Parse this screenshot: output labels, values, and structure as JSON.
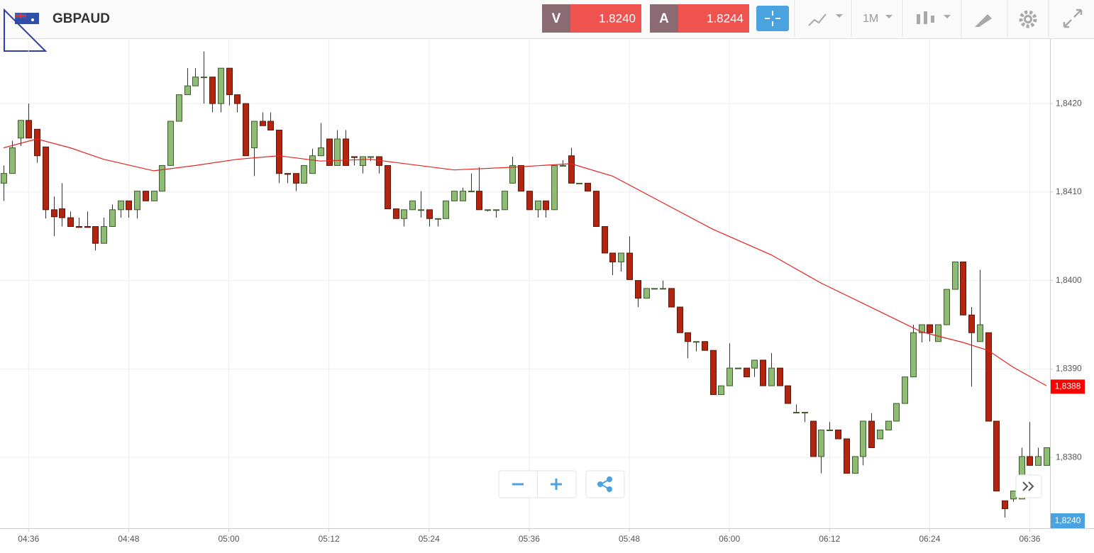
{
  "toolbar": {
    "symbol": "GBPAUD",
    "sell_label": "V",
    "sell_price": "1.8240",
    "buy_label": "A",
    "buy_price": "1.8244",
    "timeframe": "1M"
  },
  "chart_data": {
    "type": "candlestick",
    "x": [
      "04:33",
      "04:34",
      "04:35",
      "04:36",
      "04:37",
      "04:38",
      "04:39",
      "04:40",
      "04:41",
      "04:42",
      "04:43",
      "04:44",
      "04:45",
      "04:46",
      "04:47",
      "04:48",
      "04:49",
      "04:50",
      "04:51",
      "04:52",
      "04:53",
      "04:54",
      "04:55",
      "04:56",
      "04:57",
      "04:58",
      "04:59",
      "05:00",
      "05:01",
      "05:02",
      "05:03",
      "05:04",
      "05:05",
      "05:06",
      "05:07",
      "05:08",
      "05:09",
      "05:10",
      "05:11",
      "05:12",
      "05:13",
      "05:14",
      "05:15",
      "05:16",
      "05:17",
      "05:18",
      "05:19",
      "05:20",
      "05:21",
      "05:22",
      "05:23",
      "05:24",
      "05:25",
      "05:26",
      "05:27",
      "05:28",
      "05:29",
      "05:30",
      "05:31",
      "05:32",
      "05:33",
      "05:34",
      "05:35",
      "05:36",
      "05:37",
      "05:38",
      "05:39",
      "05:40",
      "05:41",
      "05:42",
      "05:43",
      "05:44",
      "05:45",
      "05:46",
      "05:47",
      "05:48",
      "05:49",
      "05:50",
      "05:51",
      "05:52",
      "05:53",
      "05:54",
      "05:55",
      "05:56",
      "05:57",
      "05:58",
      "05:59",
      "06:00",
      "06:01",
      "06:02",
      "06:03",
      "06:04",
      "06:05",
      "06:06",
      "06:07",
      "06:08",
      "06:09",
      "06:10",
      "06:11",
      "06:12",
      "06:13",
      "06:14",
      "06:15",
      "06:16",
      "06:17",
      "06:18",
      "06:19",
      "06:20",
      "06:21",
      "06:22",
      "06:23",
      "06:24",
      "06:25",
      "06:26",
      "06:27",
      "06:28",
      "06:29",
      "06:30",
      "06:31",
      "06:32",
      "06:33",
      "06:34",
      "06:35",
      "06:36",
      "06:37",
      "06:38"
    ],
    "open": [
      1.8411,
      1.84121,
      1.84161,
      1.84181,
      1.84171,
      1.84151,
      1.8408,
      1.84081,
      1.84071,
      1.84061,
      1.84061,
      1.84061,
      1.84042,
      1.84061,
      1.8408,
      1.8409,
      1.8408,
      1.84101,
      1.8409,
      1.84101,
      1.8413,
      1.8418,
      1.8421,
      1.8422,
      1.8423,
      1.8423,
      1.842,
      1.8424,
      1.8421,
      1.842,
      1.8415,
      1.8418,
      1.8418,
      1.8417,
      1.84121,
      1.84121,
      1.8411,
      1.84121,
      1.84141,
      1.8416,
      1.8413,
      1.8416,
      1.8414,
      1.8413,
      1.8414,
      1.8414,
      1.8413,
      1.84081,
      1.8407,
      1.8408,
      1.8408,
      1.8408,
      1.8407,
      1.8407,
      1.8409,
      1.8409,
      1.84101,
      1.84101,
      1.8408,
      1.8408,
      1.8408,
      1.8411,
      1.8413,
      1.84101,
      1.8408,
      1.8409,
      1.8408,
      1.8413,
      1.84141,
      1.8411,
      1.8411,
      1.84101,
      1.84061,
      1.84031,
      1.84021,
      1.84031,
      1.84,
      1.8398,
      1.83991,
      1.83991,
      1.83991,
      1.8397,
      1.83941,
      1.83931,
      1.83931,
      1.83921,
      1.83871,
      1.83881,
      1.83901,
      1.83901,
      1.83901,
      1.8391,
      1.83881,
      1.83901,
      1.83881,
      1.83851,
      1.83851,
      1.83841,
      1.83801,
      1.83831,
      1.83831,
      1.83821,
      1.83782,
      1.83801,
      1.83841,
      1.83821,
      1.83831,
      1.83841,
      1.83861,
      1.83891,
      1.83941,
      1.8395,
      1.83931,
      1.8395,
      1.8399,
      1.84021,
      1.83961,
      1.83931,
      1.83941,
      1.83841,
      1.83751,
      1.83753,
      1.83753,
      1.83801,
      1.83791,
      1.83791
    ],
    "high": [
      1.8413,
      1.84158,
      1.84181,
      1.842,
      1.84171,
      1.84151,
      1.84095,
      1.8411,
      1.84078,
      1.84071,
      1.84078,
      1.84061,
      1.84071,
      1.84086,
      1.8409,
      1.8409,
      1.84101,
      1.84101,
      1.84101,
      1.8413,
      1.8418,
      1.8421,
      1.8424,
      1.8424,
      1.84259,
      1.8423,
      1.8424,
      1.8424,
      1.8421,
      1.842,
      1.8418,
      1.8419,
      1.8419,
      1.8417,
      1.84121,
      1.84121,
      1.8413,
      1.84149,
      1.84178,
      1.8416,
      1.8417,
      1.8417,
      1.8414,
      1.8414,
      1.8414,
      1.8414,
      1.8413,
      1.84081,
      1.8408,
      1.8409,
      1.84101,
      1.8408,
      1.8407,
      1.8409,
      1.84101,
      1.84105,
      1.84121,
      1.84128,
      1.8408,
      1.8408,
      1.84101,
      1.8414,
      1.8413,
      1.84101,
      1.8409,
      1.8409,
      1.8413,
      1.84136,
      1.8415,
      1.8411,
      1.8411,
      1.84101,
      1.84061,
      1.84031,
      1.84031,
      1.8405,
      1.84,
      1.83991,
      1.83991,
      1.84,
      1.83991,
      1.8397,
      1.83941,
      1.83931,
      1.83931,
      1.83921,
      1.83881,
      1.83929,
      1.83901,
      1.83901,
      1.8391,
      1.8391,
      1.83918,
      1.83901,
      1.83881,
      1.8386,
      1.83851,
      1.83841,
      1.83831,
      1.8384,
      1.83831,
      1.83821,
      1.83801,
      1.83841,
      1.8385,
      1.83831,
      1.83841,
      1.83861,
      1.83891,
      1.8395,
      1.8395,
      1.8395,
      1.8395,
      1.8399,
      1.84021,
      1.84021,
      1.8397,
      1.84012,
      1.83941,
      1.83841,
      1.83751,
      1.83762,
      1.83811,
      1.8384,
      1.83811,
      1.83811
    ],
    "low": [
      1.8409,
      1.84121,
      1.84152,
      1.84161,
      1.84133,
      1.8407,
      1.8405,
      1.84061,
      1.84061,
      1.8406,
      1.8406,
      1.84034,
      1.84042,
      1.84061,
      1.84071,
      1.84071,
      1.8407,
      1.8409,
      1.8409,
      1.84101,
      1.8413,
      1.8418,
      1.8421,
      1.8422,
      1.842,
      1.8419,
      1.8419,
      1.84198,
      1.8419,
      1.84141,
      1.84118,
      1.84175,
      1.8417,
      1.8411,
      1.8411,
      1.84101,
      1.8411,
      1.84121,
      1.84141,
      1.8413,
      1.8413,
      1.8413,
      1.8413,
      1.84121,
      1.84135,
      1.84121,
      1.84081,
      1.8407,
      1.84061,
      1.8408,
      1.84071,
      1.84061,
      1.84061,
      1.8407,
      1.8409,
      1.8409,
      1.84101,
      1.8408,
      1.84078,
      1.84071,
      1.8408,
      1.8411,
      1.84101,
      1.8408,
      1.84071,
      1.84071,
      1.8408,
      1.8413,
      1.8411,
      1.8411,
      1.84101,
      1.84061,
      1.84031,
      1.84006,
      1.8401,
      1.84001,
      1.8397,
      1.8398,
      1.83991,
      1.83991,
      1.8397,
      1.83941,
      1.83912,
      1.8392,
      1.83921,
      1.83871,
      1.83871,
      1.83881,
      1.83901,
      1.83891,
      1.83891,
      1.83881,
      1.83881,
      1.83881,
      1.83861,
      1.83851,
      1.8384,
      1.83801,
      1.83782,
      1.83831,
      1.83821,
      1.83782,
      1.83782,
      1.83791,
      1.83811,
      1.83821,
      1.83831,
      1.83841,
      1.83861,
      1.83891,
      1.8393,
      1.83931,
      1.83931,
      1.8395,
      1.8399,
      1.83961,
      1.8388,
      1.83931,
      1.83841,
      1.83762,
      1.83732,
      1.8375,
      1.83753,
      1.83791,
      1.83791,
      1.83791
    ],
    "close": [
      1.84121,
      1.8415,
      1.84181,
      1.84161,
      1.84141,
      1.8408,
      1.84072,
      1.84071,
      1.84061,
      1.8406,
      1.8406,
      1.84042,
      1.84061,
      1.8408,
      1.8409,
      1.8408,
      1.84101,
      1.8409,
      1.84101,
      1.8413,
      1.8418,
      1.8421,
      1.8422,
      1.8423,
      1.8423,
      1.842,
      1.8424,
      1.8421,
      1.842,
      1.84141,
      1.8418,
      1.84175,
      1.8417,
      1.84121,
      1.8412,
      1.8411,
      1.8413,
      1.84141,
      1.8415,
      1.8413,
      1.8416,
      1.8413,
      1.84139,
      1.8414,
      1.8414,
      1.8413,
      1.84081,
      1.8407,
      1.8408,
      1.8409,
      1.8408,
      1.8407,
      1.8407,
      1.8409,
      1.84101,
      1.84101,
      1.84101,
      1.8408,
      1.8408,
      1.8408,
      1.84101,
      1.8413,
      1.84101,
      1.8408,
      1.8409,
      1.8408,
      1.8413,
      1.8413,
      1.8411,
      1.8411,
      1.84101,
      1.84061,
      1.84031,
      1.84021,
      1.84031,
      1.84001,
      1.8398,
      1.83991,
      1.83991,
      1.83991,
      1.8397,
      1.83941,
      1.83931,
      1.83931,
      1.83921,
      1.83871,
      1.83881,
      1.83901,
      1.83901,
      1.83891,
      1.8391,
      1.83881,
      1.83901,
      1.83881,
      1.83861,
      1.83851,
      1.83851,
      1.83801,
      1.83831,
      1.83831,
      1.83821,
      1.83782,
      1.83801,
      1.83841,
      1.83811,
      1.83831,
      1.83841,
      1.83861,
      1.83891,
      1.83941,
      1.8395,
      1.83941,
      1.8395,
      1.8399,
      1.84021,
      1.83961,
      1.83941,
      1.8395,
      1.83841,
      1.83762,
      1.83742,
      1.83762,
      1.83801,
      1.83791,
      1.83801,
      1.83811
    ],
    "up_color": "#8fbc74",
    "down_color": "#b3250e",
    "moving_average": {
      "color": "#e8231f",
      "x": [
        "04:33",
        "04:37",
        "04:41",
        "04:45",
        "04:51",
        "04:56",
        "05:01",
        "05:06",
        "05:11",
        "05:17",
        "05:22",
        "05:27",
        "05:34",
        "05:41",
        "05:46",
        "05:51",
        "05:58",
        "06:05",
        "06:11",
        "06:18",
        "06:23",
        "06:28",
        "06:31",
        "06:34",
        "06:38"
      ],
      "values": [
        1.8415,
        1.8416,
        1.8415,
        1.84137,
        1.84124,
        1.8413,
        1.84137,
        1.84141,
        1.84135,
        1.84137,
        1.84131,
        1.84125,
        1.84128,
        1.84132,
        1.84118,
        1.84093,
        1.84058,
        1.84029,
        1.83997,
        1.83965,
        1.83942,
        1.8393,
        1.83921,
        1.83902,
        1.83881
      ]
    },
    "xlim": [
      "04:33",
      "06:38"
    ],
    "xticks": [
      "04:36",
      "04:48",
      "05:00",
      "05:12",
      "05:24",
      "05:36",
      "05:48",
      "06:00",
      "06:12",
      "06:24",
      "06:36"
    ],
    "ylim": [
      1.8372,
      1.84273
    ],
    "yticks": [
      {
        "value": 1.838,
        "label": "1,8380"
      },
      {
        "value": 1.839,
        "label": "1,8390"
      },
      {
        "value": 1.84,
        "label": "1,8400"
      },
      {
        "value": 1.841,
        "label": "1,8410"
      },
      {
        "value": 1.842,
        "label": "1,8420"
      }
    ],
    "grid": true,
    "last_price": {
      "value": 1.8388,
      "label": "1,8388",
      "color": "#ff0000"
    },
    "cursor_label": "1,8240"
  }
}
